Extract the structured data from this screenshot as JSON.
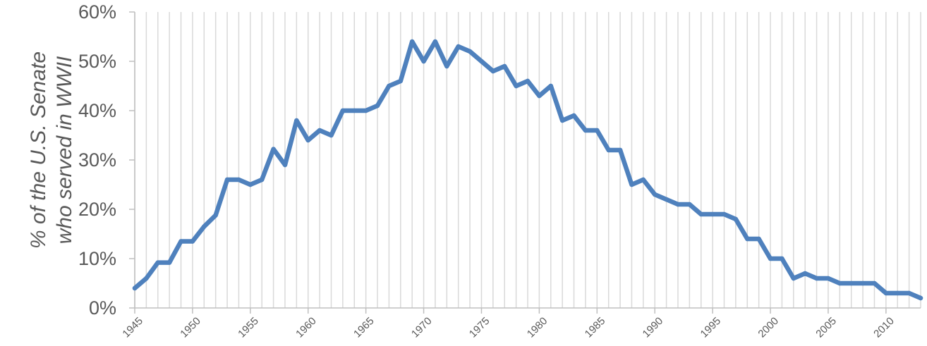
{
  "chart_data": {
    "type": "line",
    "title": "",
    "xlabel": "",
    "ylabel": [
      "% of the U.S. Senate",
      "who served in WWII"
    ],
    "xlim": [
      1945,
      2013
    ],
    "ylim": [
      0,
      60
    ],
    "x_tick_values": [
      1945,
      1950,
      1955,
      1960,
      1965,
      1970,
      1975,
      1980,
      1985,
      1990,
      1995,
      2000,
      2005,
      2010
    ],
    "x_tick_labels": [
      "1945",
      "1950",
      "1955",
      "1960",
      "1965",
      "1970",
      "1975",
      "1980",
      "1985",
      "1990",
      "1995",
      "2000",
      "2005",
      "2010"
    ],
    "y_tick_values": [
      0,
      10,
      20,
      30,
      40,
      50,
      60
    ],
    "y_tick_labels": [
      "0%",
      "10%",
      "20%",
      "30%",
      "40%",
      "50%",
      "60%"
    ],
    "grid": {
      "vertical": true,
      "horizontal": false
    },
    "colors": {
      "line": "#4f81bd",
      "grid": "#d9d9d9",
      "axis": "#bfbfbf",
      "text": "#595959"
    },
    "series": [
      {
        "x": [
          1945,
          1946,
          1947,
          1948,
          1949,
          1950,
          1951,
          1952,
          1953,
          1954,
          1955,
          1956,
          1957,
          1958,
          1959,
          1960,
          1961,
          1962,
          1963,
          1964,
          1965,
          1966,
          1967,
          1968,
          1969,
          1970,
          1971,
          1972,
          1973,
          1974,
          1975,
          1976,
          1977,
          1978,
          1979,
          1980,
          1981,
          1982,
          1983,
          1984,
          1985,
          1986,
          1987,
          1988,
          1989,
          1990,
          1991,
          1992,
          1993,
          1994,
          1995,
          1996,
          1997,
          1998,
          1999,
          2000,
          2001,
          2002,
          2003,
          2004,
          2005,
          2006,
          2007,
          2008,
          2009,
          2010,
          2011,
          2012,
          2013
        ],
        "values": [
          4,
          6,
          9.2,
          9.2,
          13.5,
          13.5,
          16.5,
          18.8,
          26,
          26,
          25,
          26,
          32.2,
          29,
          38,
          34,
          36,
          35,
          40,
          40,
          40,
          41,
          45,
          46,
          54,
          50,
          54,
          49,
          53,
          52,
          50,
          48,
          49,
          45,
          46,
          43,
          45,
          38,
          39,
          36,
          36,
          32,
          32,
          25,
          26,
          23,
          22,
          21,
          21,
          19,
          19,
          19,
          18,
          14,
          14,
          10,
          10,
          6,
          7,
          6,
          6,
          5,
          5,
          5,
          5,
          3,
          3,
          3,
          2
        ]
      }
    ]
  }
}
